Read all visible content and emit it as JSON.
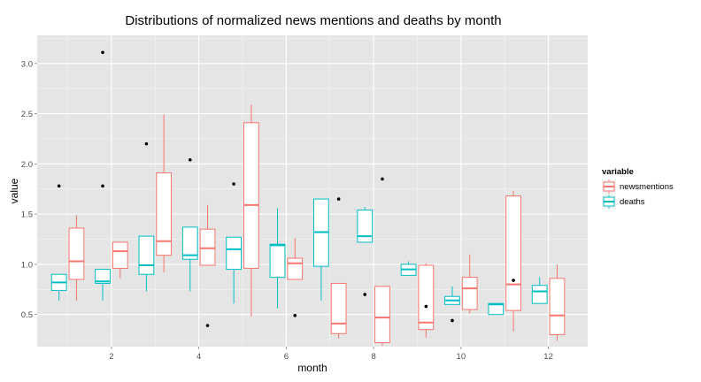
{
  "chart_data": {
    "type": "boxplot",
    "title": "Distributions of normalized news mentions and deaths by month",
    "xlabel": "month",
    "ylabel": "value",
    "xlim": [
      0.3,
      12.9
    ],
    "ylim": [
      0.18,
      3.28
    ],
    "x_ticks": [
      2,
      4,
      6,
      8,
      10,
      12
    ],
    "y_ticks": [
      0.5,
      1.0,
      1.5,
      2.0,
      2.5,
      3.0
    ],
    "x_tick_labels": [
      "2",
      "4",
      "6",
      "8",
      "10",
      "12"
    ],
    "y_tick_labels": [
      "0.5",
      "1.0",
      "1.5",
      "2.0",
      "2.5",
      "3.0"
    ],
    "grid": true,
    "legend": {
      "title": "variable",
      "position": "right",
      "entries": [
        "newsmentions",
        "deaths"
      ]
    },
    "colors": {
      "newsmentions": "#F8766D",
      "deaths": "#00BFC4",
      "outlier": "#000000",
      "panel": "#E5E5E5",
      "grid": "#FFFFFF"
    },
    "series": [
      {
        "name": "deaths",
        "boxes": [
          {
            "month": 1,
            "min": 0.64,
            "q1": 0.74,
            "median": 0.82,
            "q3": 0.9,
            "max": 0.9,
            "outliers": [
              1.78
            ]
          },
          {
            "month": 2,
            "min": 0.64,
            "q1": 0.81,
            "median": 0.83,
            "q3": 0.95,
            "max": 0.95,
            "outliers": [
              1.78,
              3.11
            ]
          },
          {
            "month": 3,
            "min": 0.73,
            "q1": 0.9,
            "median": 0.99,
            "q3": 1.28,
            "max": 1.28,
            "outliers": [
              2.2
            ]
          },
          {
            "month": 4,
            "min": 0.73,
            "q1": 1.05,
            "median": 1.09,
            "q3": 1.37,
            "max": 1.37,
            "outliers": [
              2.04
            ]
          },
          {
            "month": 5,
            "min": 0.61,
            "q1": 0.95,
            "median": 1.15,
            "q3": 1.27,
            "max": 1.27,
            "outliers": [
              1.8
            ]
          },
          {
            "month": 6,
            "min": 0.56,
            "q1": 0.87,
            "median": 1.19,
            "q3": 1.2,
            "max": 1.56,
            "outliers": []
          },
          {
            "month": 7,
            "min": 0.64,
            "q1": 0.98,
            "median": 1.32,
            "q3": 1.65,
            "max": 1.65,
            "outliers": []
          },
          {
            "month": 8,
            "min": 1.22,
            "q1": 1.22,
            "median": 1.28,
            "q3": 1.54,
            "max": 1.57,
            "outliers": [
              0.7
            ]
          },
          {
            "month": 9,
            "min": 0.89,
            "q1": 0.89,
            "median": 0.95,
            "q3": 1.0,
            "max": 1.03,
            "outliers": []
          },
          {
            "month": 10,
            "min": 0.6,
            "q1": 0.6,
            "median": 0.64,
            "q3": 0.68,
            "max": 0.78,
            "outliers": [
              0.44
            ]
          },
          {
            "month": 11,
            "min": 0.5,
            "q1": 0.5,
            "median": 0.6,
            "q3": 0.61,
            "max": 0.61,
            "outliers": []
          },
          {
            "month": 12,
            "min": 0.61,
            "q1": 0.61,
            "median": 0.73,
            "q3": 0.79,
            "max": 0.87,
            "outliers": []
          }
        ]
      },
      {
        "name": "newsmentions",
        "boxes": [
          {
            "month": 1,
            "min": 0.64,
            "q1": 0.85,
            "median": 1.03,
            "q3": 1.36,
            "max": 1.49,
            "outliers": []
          },
          {
            "month": 2,
            "min": 0.86,
            "q1": 0.96,
            "median": 1.13,
            "q3": 1.22,
            "max": 1.22,
            "outliers": []
          },
          {
            "month": 3,
            "min": 0.92,
            "q1": 1.09,
            "median": 1.23,
            "q3": 1.91,
            "max": 2.49,
            "outliers": []
          },
          {
            "month": 4,
            "min": 0.99,
            "q1": 0.99,
            "median": 1.16,
            "q3": 1.35,
            "max": 1.59,
            "outliers": [
              0.39
            ]
          },
          {
            "month": 5,
            "min": 0.48,
            "q1": 0.96,
            "median": 1.59,
            "q3": 2.41,
            "max": 2.59,
            "outliers": []
          },
          {
            "month": 6,
            "min": 0.85,
            "q1": 0.85,
            "median": 1.01,
            "q3": 1.06,
            "max": 1.26,
            "outliers": [
              0.49
            ]
          },
          {
            "month": 7,
            "min": 0.26,
            "q1": 0.31,
            "median": 0.41,
            "q3": 0.81,
            "max": 0.81,
            "outliers": [
              1.65
            ]
          },
          {
            "month": 8,
            "min": 0.19,
            "q1": 0.22,
            "median": 0.47,
            "q3": 0.78,
            "max": 0.78,
            "outliers": [
              1.85
            ]
          },
          {
            "month": 9,
            "min": 0.27,
            "q1": 0.35,
            "median": 0.42,
            "q3": 0.99,
            "max": 1.01,
            "outliers": [
              0.58
            ]
          },
          {
            "month": 10,
            "min": 0.51,
            "q1": 0.55,
            "median": 0.76,
            "q3": 0.87,
            "max": 1.1,
            "outliers": []
          },
          {
            "month": 11,
            "min": 0.33,
            "q1": 0.54,
            "median": 0.8,
            "q3": 1.68,
            "max": 1.73,
            "outliers": [
              0.84
            ]
          },
          {
            "month": 12,
            "min": 0.24,
            "q1": 0.3,
            "median": 0.49,
            "q3": 0.86,
            "max": 1.0,
            "outliers": []
          }
        ]
      }
    ]
  }
}
